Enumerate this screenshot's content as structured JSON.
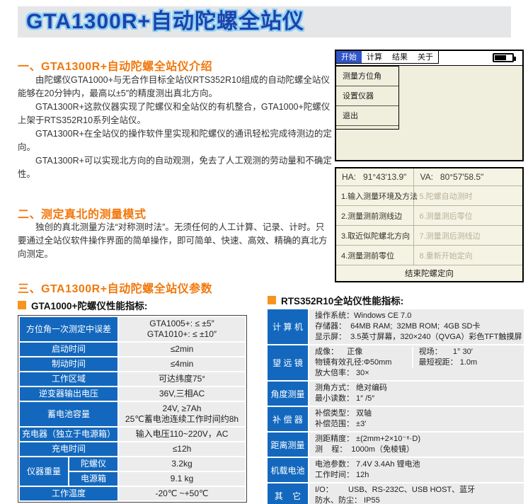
{
  "page_title": "GTA1300R+自动陀螺全站仪",
  "colors": {
    "accent_orange": "#F2780C",
    "bullet_orange": "#F7941D",
    "table_blue": "#1368BE",
    "title_blue": "#1E42AB",
    "title_outline_blue": "#8DD0F4",
    "device_background": "#F0EEDC",
    "menu_selected_blue": "#2F55C8"
  },
  "sections": {
    "intro": {
      "heading": "一、GTA1300R+自动陀螺全站仪介绍",
      "paragraphs": [
        "由陀螺仪GTA1000+与无合作目标全站仪RTS352R10组成的自动陀螺全站仪能够在20分钟内，最高以±5″的精度测出真北方向。",
        "GTA1300R+这款仪器实现了陀螺仪和全站仪的有机整合，GTA1000+陀螺仪上架于RTS352R10系列全站仪。",
        "GTA1300R+在全站仪的操作软件里实现和陀螺仪的通讯轻松完成待测边的定向。",
        "GTA1300R+可以实现北方向的自动观测，免去了人工观测的劳动量和不确定性。"
      ]
    },
    "mode": {
      "heading": "二、测定真北的测量模式",
      "paragraphs": [
        "独创的真北测量方法“对称测时法”。无须任何的人工计算、记录、计时。只要通过全站仪软件操作界面的简单操作，即可简单、快速、高效、精确的真北方向测定。"
      ]
    },
    "params": {
      "heading": "三、GTA1300R+自动陀螺全站仪参数"
    }
  },
  "device_ui": {
    "menu_items": [
      "开始",
      "计算",
      "结果",
      "关于"
    ],
    "selected_menu": "开始",
    "battery_icon": "battery-icon",
    "dropdown_items": [
      "测量方位角",
      "设置仪器",
      "退出"
    ],
    "ha_label": "HA:",
    "ha_value": "91°43'13.9\"",
    "va_label": "VA:",
    "va_value": "80°57'58.5\"",
    "steps_left": [
      "1.输入测量环境及方法",
      "2.测量测前测线边",
      "3.取近似陀螺北方向",
      "4.测量测前零位"
    ],
    "steps_right": [
      "5.陀螺自动测时",
      "6.测量测后零位",
      "7.测量测后测线边",
      "8.重新开始定向"
    ],
    "end_button": "结束陀螺定向"
  },
  "gyro_table": {
    "title": "GTA1000+陀螺仪性能指标:",
    "rows": [
      {
        "label": "方位角一次测定中误差",
        "value_lines": [
          "GTA1005+:  ≤ ±5″",
          "GTA1010+:  ≤ ±10″"
        ]
      },
      {
        "label": "启动时间",
        "value_lines": [
          "≤2min"
        ]
      },
      {
        "label": "制动时间",
        "value_lines": [
          "≤4min"
        ]
      },
      {
        "label": "工作区域",
        "value_lines": [
          "可达纬度75°"
        ]
      },
      {
        "label": "逆变器输出电压",
        "value_lines": [
          "36V,三相AC"
        ]
      },
      {
        "label": "蓄电池容量",
        "value_lines": [
          "24V, ≥7Ah",
          "25℃蓄电池连续工作时间约8h"
        ]
      },
      {
        "label": "充电器（独立于电源箱）",
        "value_lines": [
          "输入电压110~220V，AC"
        ]
      },
      {
        "label": "充电时间",
        "value_lines": [
          "≤12h"
        ]
      },
      {
        "group": "仪器重量",
        "sub": "陀螺仪",
        "value_lines": [
          "3.2kg"
        ]
      },
      {
        "sub": "电源箱",
        "value_lines": [
          "9.1 kg"
        ]
      },
      {
        "label": "工作温度",
        "value_lines": [
          "-20℃ ~+50℃"
        ]
      }
    ]
  },
  "station_table": {
    "title": "RTS352R10全站仪性能指标:",
    "groups": [
      {
        "label": "计 算 机",
        "rows": [
          [
            "操作系统：Windows CE 7.0"
          ],
          [
            "存储器：  64MB RAM;  32MB ROM;  4GB SD卡"
          ],
          [
            "显示屏：  3.5英寸屏幕，320×240（QVGA）彩色TFT触摸屏"
          ]
        ]
      },
      {
        "label": "望 远 镜",
        "rows": [
          [
            "成像：    正像",
            "视场：     1° 30′"
          ],
          [
            "物镜有效孔径:Φ50mm",
            "最短视距： 1.0m"
          ],
          [
            "放大倍率： 30×"
          ]
        ]
      },
      {
        "label": "角度测量",
        "rows": [
          [
            "测角方式： 绝对编码"
          ],
          [
            "最小读数： 1″ /5″"
          ]
        ]
      },
      {
        "label": "补 偿 器",
        "rows": [
          [
            "补偿类型： 双轴"
          ],
          [
            "补偿范围： ±3′"
          ]
        ]
      },
      {
        "label": "距离测量",
        "rows": [
          [
            "测距精度： ±(2mm+2×10⁻⁶·D)"
          ],
          [
            "测    程：  1000m（免棱镜）"
          ]
        ]
      },
      {
        "label": "机载电池",
        "rows": [
          [
            "电池参数： 7.4V 3.4Ah 锂电池"
          ],
          [
            "工作时间： 12h"
          ]
        ]
      },
      {
        "label": "其    它",
        "rows": [
          [
            "I/O：       USB、RS-232C、USB HOST、蓝牙"
          ],
          [
            "防水、防尘： IP55"
          ]
        ]
      }
    ]
  }
}
